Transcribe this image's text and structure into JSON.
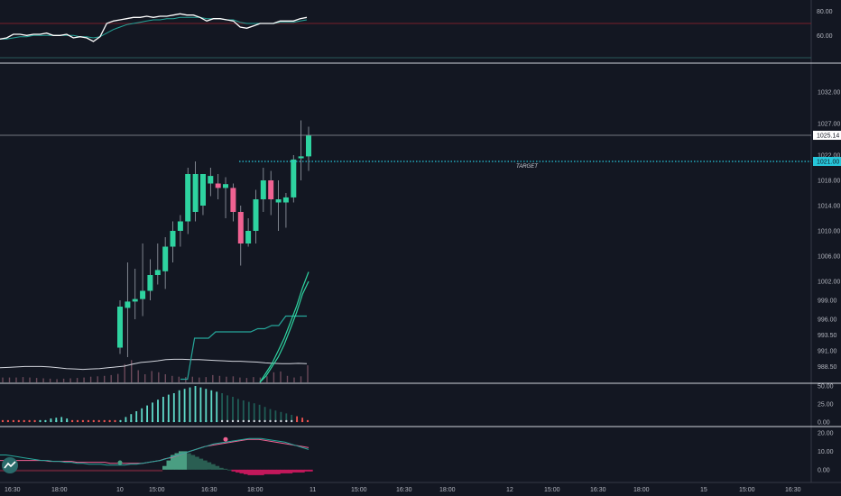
{
  "chart_data": [
    {
      "type": "line",
      "ylim": [
        40,
        88
      ],
      "yticks": [
        "80.00",
        "60.00"
      ],
      "threshold": 70,
      "series": [
        {
          "values": [
            57,
            58,
            61,
            61,
            60,
            61,
            61,
            62,
            60,
            60,
            61,
            58,
            59,
            58,
            55,
            59,
            70,
            72,
            73,
            74,
            75,
            75,
            76,
            75,
            76,
            76,
            77,
            78,
            77,
            77,
            75,
            72,
            74,
            74,
            73,
            72,
            67,
            66,
            68,
            70,
            70,
            70,
            72,
            72,
            72,
            74,
            75
          ]
        },
        {
          "values": [
            57,
            57,
            58,
            59,
            59,
            60,
            60,
            60,
            60,
            60,
            60,
            60,
            59,
            59,
            58,
            59,
            62,
            65,
            67,
            69,
            70,
            71,
            72,
            73,
            73,
            74,
            74,
            75,
            75,
            75,
            75,
            74,
            74,
            74,
            73,
            73,
            71,
            70,
            70,
            70,
            70,
            70,
            71,
            71,
            71,
            72,
            73
          ]
        }
      ]
    },
    {
      "type": "candlestick",
      "ylim": [
        986,
        1036
      ],
      "yticks": [
        "1032.00",
        "1027.00",
        "1022.00",
        "1018.00",
        "1014.00",
        "1010.00",
        "1006.00",
        "1002.00",
        "999.00",
        "996.00",
        "993.50",
        "991.00",
        "988.50"
      ],
      "candles": [
        {
          "o": 991.5,
          "h": 999.0,
          "l": 990.5,
          "c": 998.0
        },
        {
          "o": 997.8,
          "h": 1005.0,
          "l": 990.0,
          "c": 998.8
        },
        {
          "o": 998.8,
          "h": 1004.0,
          "l": 996.0,
          "c": 999.2
        },
        {
          "o": 999.2,
          "h": 1008.0,
          "l": 996.5,
          "c": 1000.5
        },
        {
          "o": 1000.5,
          "h": 1005.5,
          "l": 999.0,
          "c": 1003.0
        },
        {
          "o": 1003.0,
          "h": 1008.0,
          "l": 1001.5,
          "c": 1003.8
        },
        {
          "o": 1003.6,
          "h": 1009.0,
          "l": 1000.8,
          "c": 1007.5
        },
        {
          "o": 1007.5,
          "h": 1011.5,
          "l": 1005.0,
          "c": 1010.0
        },
        {
          "o": 1010.0,
          "h": 1012.5,
          "l": 1007.5,
          "c": 1011.5
        },
        {
          "o": 1011.5,
          "h": 1020.0,
          "l": 1009.5,
          "c": 1019.0
        },
        {
          "o": 1013.0,
          "h": 1021.0,
          "l": 1011.5,
          "c": 1019.0
        },
        {
          "o": 1014.0,
          "h": 1019.0,
          "l": 1012.5,
          "c": 1019.0
        },
        {
          "o": 1017.5,
          "h": 1020.0,
          "l": 1015.5,
          "c": 1018.7
        },
        {
          "o": 1017.5,
          "h": 1019.0,
          "l": 1015.0,
          "c": 1016.8
        },
        {
          "o": 1016.8,
          "h": 1018.5,
          "l": 1012.0,
          "c": 1017.4
        },
        {
          "o": 1016.8,
          "h": 1017.5,
          "l": 1011.5,
          "c": 1013.0
        },
        {
          "o": 1013.0,
          "h": 1014.0,
          "l": 1004.5,
          "c": 1008.0
        },
        {
          "o": 1008.0,
          "h": 1012.0,
          "l": 1007.5,
          "c": 1010.0
        },
        {
          "o": 1010.0,
          "h": 1016.5,
          "l": 1008.0,
          "c": 1015.0
        },
        {
          "o": 1015.0,
          "h": 1020.0,
          "l": 1013.0,
          "c": 1018.0
        },
        {
          "o": 1018.0,
          "h": 1019.5,
          "l": 1012.5,
          "c": 1015.0
        },
        {
          "o": 1014.5,
          "h": 1018.0,
          "l": 1010.0,
          "c": 1015.0
        },
        {
          "o": 1014.5,
          "h": 1016.0,
          "l": 1010.5,
          "c": 1015.3
        },
        {
          "o": 1015.3,
          "h": 1022.0,
          "l": 1014.5,
          "c": 1021.3
        },
        {
          "o": 1021.5,
          "h": 1027.5,
          "l": 1018.0,
          "c": 1021.8
        },
        {
          "o": 1021.8,
          "h": 1026.5,
          "l": 1019.5,
          "c": 1025.1
        }
      ],
      "volume_max": 10,
      "volumes": [
        1.2,
        1.2,
        1.2,
        1.3,
        1.2,
        1.1,
        1.0,
        0.9,
        0.8,
        0.9,
        1.0,
        1.1,
        1.2,
        1.4,
        1.5,
        1.6,
        1.8,
        2.1,
        4.5,
        5.5,
        3.0,
        2.0,
        2.8,
        2.5,
        2.0,
        1.6,
        1.4,
        1.3,
        1.4,
        1.2,
        1.3,
        1.8,
        1.6,
        1.4,
        1.5,
        1.2,
        1.1,
        1.3,
        1.2,
        1.5,
        2.5,
        2.7,
        1.6,
        1.2,
        1.5,
        4.2
      ],
      "volume_ma": [
        3.6,
        3.7,
        3.8,
        3.9,
        3.9,
        3.9,
        3.8,
        3.6,
        3.4,
        3.3,
        3.2,
        3.3,
        3.4,
        3.6,
        3.8,
        4.0,
        4.5,
        4.9,
        5.1,
        5.3,
        5.6,
        5.7,
        5.7,
        5.6,
        5.6,
        5.5,
        5.4,
        5.3,
        5.2,
        5.2,
        5.1,
        5.0,
        4.8,
        4.7,
        4.6,
        4.6,
        4.7,
        4.6
      ],
      "step_line": [
        986.5,
        986.5,
        993.0,
        993.0,
        993.0,
        994.0,
        994.0,
        994.0,
        994.0,
        994.0,
        994.0,
        994.5,
        994.5,
        995.0,
        995.0,
        996.5,
        996.5,
        996.5,
        996.5
      ],
      "fast_line": [
        986,
        987,
        988.5,
        990,
        992,
        994.5,
        997,
        1000,
        1002
      ],
      "fast_line_2": [
        986,
        987.5,
        989,
        991,
        993,
        995.5,
        998,
        1001,
        1003.5
      ],
      "last_price": "1025.14",
      "target_price": "1021.00",
      "target_label": "TARGET",
      "target_value": 1021.0,
      "last_value": 1025.14
    },
    {
      "type": "bar",
      "ylim": [
        0,
        50
      ],
      "yticks": [
        "50.00",
        "25.00",
        "0.00"
      ],
      "values": [
        3,
        3,
        3,
        3,
        3,
        3,
        3,
        4,
        4,
        5,
        6,
        7,
        5,
        4,
        3,
        3,
        3,
        3,
        3,
        3,
        3,
        3,
        3,
        7,
        11,
        15,
        19,
        23,
        27,
        31,
        35,
        38,
        40,
        44,
        46,
        48,
        50,
        48,
        46,
        44,
        42,
        40,
        37,
        35,
        32,
        30,
        28,
        26,
        24,
        21,
        18,
        16,
        14,
        12,
        10,
        8,
        6,
        4
      ],
      "signs": [
        -1,
        -1,
        -1,
        -1,
        -1,
        -1,
        -1,
        1,
        1,
        1,
        1,
        1,
        1,
        -1,
        -1,
        -1,
        -1,
        -1,
        -1,
        -1,
        -1,
        -1,
        1,
        1,
        1,
        1,
        1,
        1,
        1,
        1,
        1,
        1,
        1,
        1,
        1,
        1,
        1,
        1,
        1,
        1,
        1,
        1,
        1,
        1,
        1,
        1,
        1,
        1,
        1,
        1,
        1,
        1,
        1,
        1,
        1,
        -1,
        -1,
        -1
      ]
    },
    {
      "type": "bar",
      "ylim": [
        -6,
        22
      ],
      "yticks": [
        "20.00",
        "10.00",
        "0.00"
      ],
      "hist": [
        -1,
        -1,
        -1,
        -1,
        -1,
        -1,
        -1,
        -1,
        -1,
        -1,
        -1,
        -1,
        -1,
        -1,
        -1,
        -1,
        -1,
        -1,
        -1,
        -1,
        -1,
        -1,
        -1,
        -1,
        -1,
        -1,
        -1,
        -1,
        -1,
        -1,
        -1,
        -1,
        -1,
        -1,
        -1,
        -1,
        -1,
        -1,
        -1,
        -1,
        2,
        5,
        8,
        9,
        10,
        10,
        9,
        8,
        7,
        6,
        5,
        4,
        3,
        2,
        1,
        0.5,
        0,
        -1,
        -1.5,
        -2,
        -2.5,
        -3,
        -3,
        -3,
        -3,
        -2.5,
        -2.5,
        -2.5,
        -2.5,
        -2,
        -2,
        -2,
        -1.5,
        -1.5,
        -1.5,
        -1,
        -1
      ],
      "macd": [
        8,
        8,
        7.5,
        7,
        6.5,
        6,
        5.5,
        5,
        5,
        4.5,
        4.5,
        4,
        4,
        3.5,
        3.5,
        3,
        3,
        3,
        2.5,
        2.5,
        2.5,
        2.5,
        3,
        3,
        3.5,
        4,
        4.5,
        5,
        6,
        7,
        8,
        9,
        10,
        11,
        12,
        13,
        14,
        14.5,
        15,
        15.5,
        16,
        16.5,
        17,
        17,
        17,
        16.5,
        16,
        15.5,
        15,
        14,
        13,
        12,
        11
      ],
      "signal": [
        5,
        5,
        5,
        5,
        5,
        5,
        5,
        5,
        5,
        4.5,
        4.5,
        4.5,
        4.5,
        4.5,
        4,
        4,
        4,
        4,
        4,
        4,
        3.5,
        3.5,
        3.5,
        3.5,
        3.5,
        3.5,
        3.5,
        4,
        4.5,
        5,
        6,
        6.5,
        7.5,
        8.5,
        9.5,
        10.5,
        11.5,
        12.5,
        13,
        13.5,
        14,
        14.5,
        15,
        15.5,
        16,
        16.5,
        16.5,
        16.5,
        16,
        15.5,
        15,
        14.5,
        14,
        13.5,
        13,
        12.5,
        12
      ]
    }
  ],
  "x_axis": {
    "ticks": [
      "16:30",
      "18:00",
      "10",
      "15:00",
      "16:30",
      "18:00",
      "11",
      "15:00",
      "16:30",
      "18:00",
      "12",
      "15:00",
      "16:30",
      "18:00",
      "15",
      "15:00",
      "16:30"
    ]
  },
  "colors": {
    "background": "#131722",
    "up": "#26a69a",
    "up_bright": "#2ed3a0",
    "down": "#ef5350",
    "down_pink": "#f06292",
    "volume_up": "#6b4a5a",
    "target": "#26c6da",
    "rsi_line": "#ffffff",
    "rsi_signal": "#26a69a",
    "threshold": "#7a1f2b",
    "axis_text": "#b2b5be",
    "separator": "#d1d4dc"
  }
}
